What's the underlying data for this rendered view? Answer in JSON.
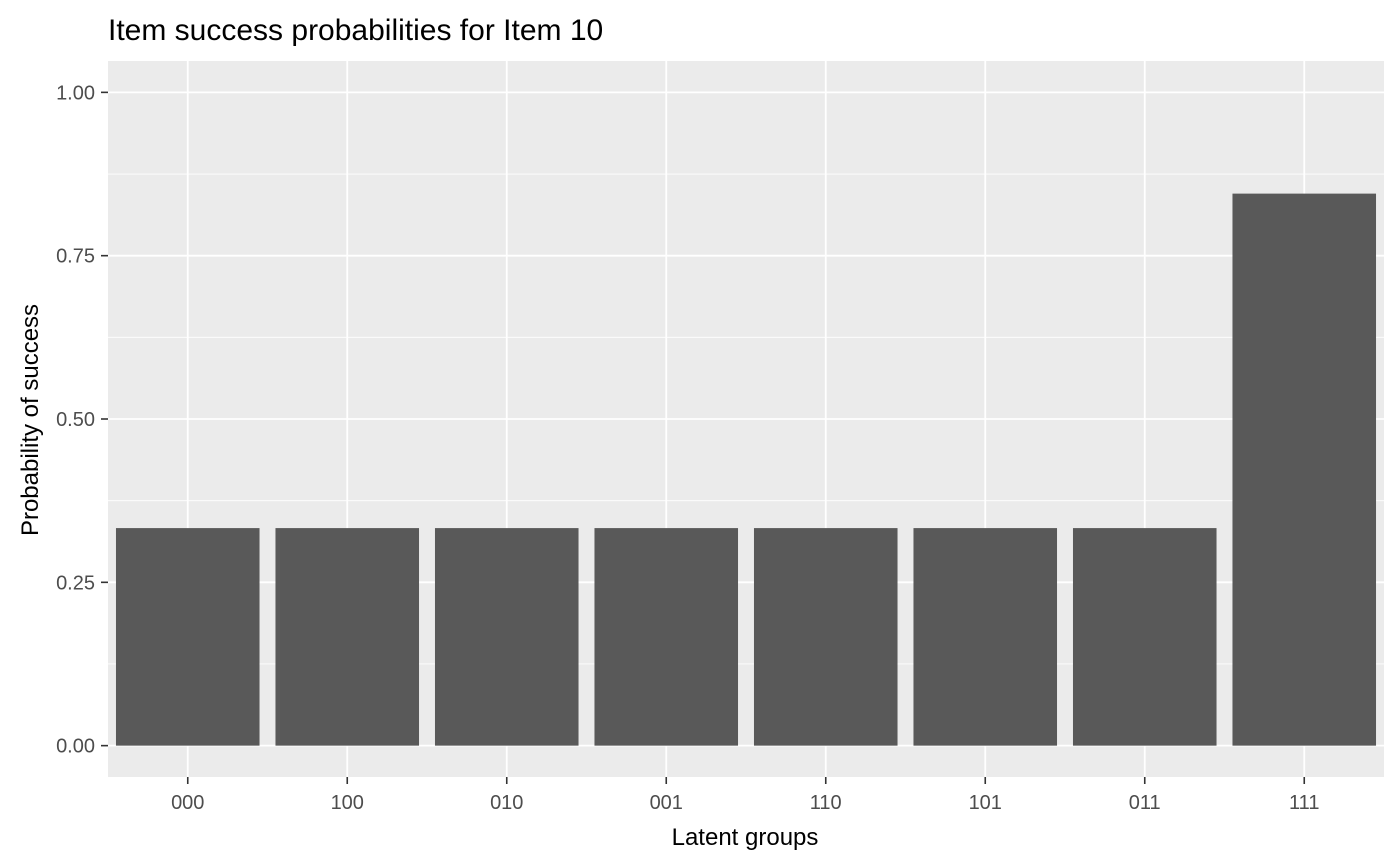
{
  "chart_data": {
    "type": "bar",
    "title": "Item success probabilities for Item 10",
    "xlabel": "Latent groups",
    "ylabel": "Probability of success",
    "categories": [
      "000",
      "100",
      "010",
      "001",
      "110",
      "101",
      "011",
      "111"
    ],
    "values": [
      0.333,
      0.333,
      0.333,
      0.333,
      0.333,
      0.333,
      0.333,
      0.845
    ],
    "ylim": [
      -0.048,
      1.048
    ],
    "yticks": [
      0.0,
      0.25,
      0.5,
      0.75,
      1.0
    ],
    "ytick_labels": [
      "0.00",
      "0.25",
      "0.50",
      "0.75",
      "1.00"
    ],
    "grid": true,
    "legend": "none",
    "colors": {
      "bar": "#595959",
      "panel_background": "#ebebeb",
      "grid": "#ffffff",
      "tick_text": "#4d4d4d",
      "text": "#000000"
    }
  }
}
